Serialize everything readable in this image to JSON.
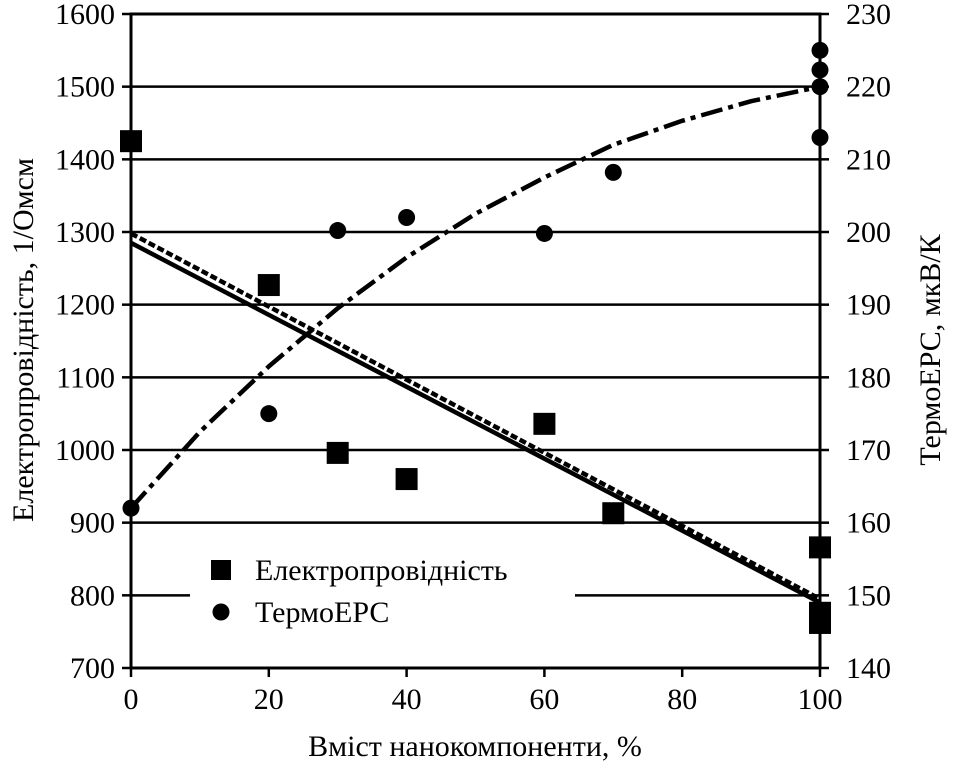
{
  "chart_data": {
    "type": "scatter",
    "title": "",
    "xlabel": "Вміст нанокомпоненти, %",
    "ylabel_left": "Електропровідність, 1/Омсм",
    "ylabel_right": "ТермоЕРС, мкВ/К",
    "xlim": [
      0,
      100
    ],
    "ylim_left": [
      700,
      1600
    ],
    "ylim_right": [
      140,
      230
    ],
    "x_ticks": [
      0,
      20,
      40,
      60,
      80,
      100
    ],
    "y_ticks_left": [
      700,
      800,
      900,
      1000,
      1100,
      1200,
      1300,
      1400,
      1500,
      1600
    ],
    "y_ticks_right": [
      140,
      150,
      160,
      170,
      180,
      190,
      200,
      210,
      220,
      230
    ],
    "grid": "horizontal",
    "legend_position": "bottom-left",
    "series": [
      {
        "name": "Електропровідність",
        "axis": "left",
        "marker": "square",
        "points": [
          {
            "x": 0,
            "y": 1425
          },
          {
            "x": 20,
            "y": 1227
          },
          {
            "x": 30,
            "y": 996
          },
          {
            "x": 40,
            "y": 960
          },
          {
            "x": 60,
            "y": 1036
          },
          {
            "x": 70,
            "y": 913
          },
          {
            "x": 100,
            "y": 866
          },
          {
            "x": 100,
            "y": 776
          },
          {
            "x": 100,
            "y": 762
          }
        ]
      },
      {
        "name": "ТермоЕРС",
        "axis": "right",
        "marker": "circle",
        "points": [
          {
            "x": 0,
            "y": 162
          },
          {
            "x": 20,
            "y": 175
          },
          {
            "x": 30,
            "y": 200.2
          },
          {
            "x": 40,
            "y": 202
          },
          {
            "x": 60,
            "y": 199.8
          },
          {
            "x": 70,
            "y": 208.2
          },
          {
            "x": 100,
            "y": 213
          },
          {
            "x": 100,
            "y": 220
          },
          {
            "x": 100,
            "y": 222.3
          },
          {
            "x": 100,
            "y": 225
          }
        ]
      }
    ],
    "fit_lines": [
      {
        "axis": "left",
        "style": "solid",
        "from": {
          "x": 0,
          "y": 1285
        },
        "to": {
          "x": 100,
          "y": 790
        }
      },
      {
        "axis": "left",
        "style": "dashed",
        "from": {
          "x": 0,
          "y": 1298
        },
        "to": {
          "x": 100,
          "y": 795
        }
      },
      {
        "axis": "right",
        "style": "dash-dot",
        "curve": [
          {
            "x": 0,
            "y": 162
          },
          {
            "x": 10,
            "y": 172.5
          },
          {
            "x": 20,
            "y": 181.5
          },
          {
            "x": 30,
            "y": 189.5
          },
          {
            "x": 40,
            "y": 196.5
          },
          {
            "x": 50,
            "y": 202.5
          },
          {
            "x": 60,
            "y": 207.5
          },
          {
            "x": 70,
            "y": 212
          },
          {
            "x": 80,
            "y": 215.3
          },
          {
            "x": 90,
            "y": 218
          },
          {
            "x": 100,
            "y": 220
          }
        ]
      }
    ]
  }
}
